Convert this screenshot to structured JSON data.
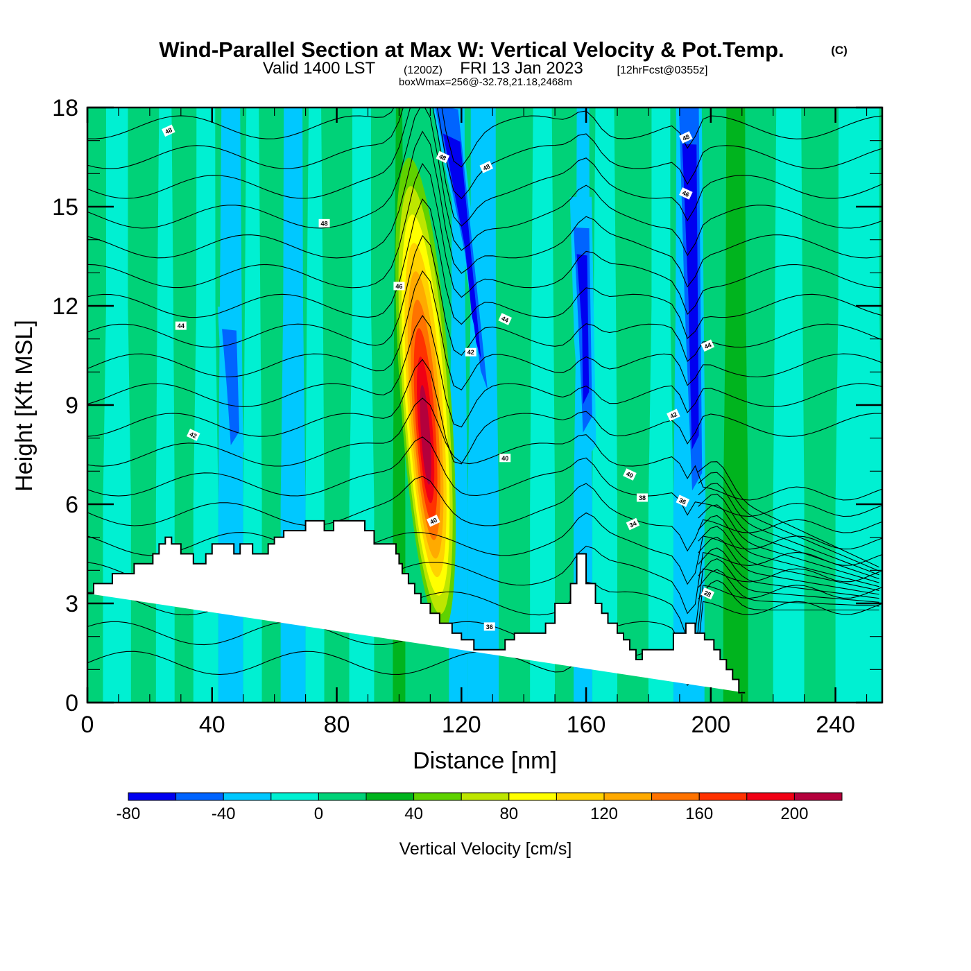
{
  "chart_data": {
    "type": "heatmap",
    "title": "Wind-Parallel Section at Max W: Vertical Velocity & Pot.Temp.",
    "title_mark": "(C)",
    "subtitle": {
      "valid": "Valid 1400 LST",
      "utc": "(1200Z)",
      "date": "FRI 13 Jan 2023",
      "forecast": "[12hrFcst@0355z]"
    },
    "box_wmax": "boxWmax=256@-32.78,21.18,2468m",
    "xlabel": "Distance [nm]",
    "ylabel": "Height [Kft MSL]",
    "xlim": [
      0,
      255
    ],
    "ylim": [
      0,
      18
    ],
    "xticks": [
      0,
      40,
      80,
      120,
      160,
      200,
      240
    ],
    "xticks_minor_step": 10,
    "yticks": [
      0,
      3,
      6,
      9,
      12,
      15,
      18
    ],
    "yticks_minor_step": 1,
    "colorbar": {
      "title": "Vertical Velocity [cm/s]",
      "levels": [
        -80,
        -60,
        -40,
        -20,
        0,
        20,
        40,
        60,
        80,
        100,
        120,
        140,
        160,
        180,
        200,
        220
      ],
      "tick_labels": [
        -80,
        -40,
        0,
        40,
        80,
        120,
        160,
        200
      ],
      "colors": [
        "#0000f0",
        "#0064ff",
        "#00c8ff",
        "#00f0d2",
        "#00d278",
        "#00b41e",
        "#5fd200",
        "#bee600",
        "#ffff00",
        "#ffd200",
        "#ffaa00",
        "#ff7300",
        "#ff3200",
        "#f00014",
        "#b4003c"
      ]
    },
    "terrain_kft": {
      "x_nm": [
        0,
        2,
        2,
        8,
        8,
        15,
        15,
        21,
        21,
        23,
        23,
        25,
        25,
        27,
        27,
        30,
        30,
        34,
        34,
        38,
        38,
        40,
        40,
        47,
        47,
        49,
        49,
        53,
        53,
        58,
        58,
        60,
        60,
        63,
        63,
        70,
        70,
        76,
        76,
        79,
        79,
        89,
        89,
        92,
        92,
        99,
        99,
        100,
        100,
        101,
        101,
        103,
        103,
        105,
        105,
        107,
        107,
        110,
        110,
        113,
        113,
        117,
        117,
        120,
        120,
        124,
        124,
        134,
        134,
        137,
        137,
        147,
        147,
        150,
        150,
        155,
        155,
        157,
        157,
        160,
        160,
        163,
        163,
        165,
        165,
        167,
        167,
        170,
        170,
        172,
        172,
        174,
        174,
        176,
        176,
        178,
        178,
        188,
        188,
        192,
        192,
        195,
        195,
        198,
        198,
        201,
        201,
        203,
        203,
        205,
        205,
        207,
        207,
        209,
        209,
        211,
        211,
        213,
        213,
        216,
        216,
        255
      ],
      "height": [
        3.3,
        3.3,
        3.6,
        3.6,
        3.9,
        3.9,
        4.2,
        4.2,
        4.5,
        4.5,
        4.8,
        4.8,
        5.0,
        5.0,
        4.8,
        4.8,
        4.5,
        4.5,
        4.2,
        4.2,
        4.5,
        4.5,
        4.8,
        4.8,
        4.5,
        4.5,
        4.8,
        4.8,
        4.5,
        4.5,
        4.8,
        4.8,
        5.0,
        5.0,
        5.2,
        5.2,
        5.5,
        5.5,
        5.2,
        5.2,
        5.5,
        5.5,
        5.2,
        5.2,
        4.8,
        4.8,
        4.5,
        4.5,
        4.2,
        4.2,
        3.9,
        3.9,
        3.6,
        3.6,
        3.3,
        3.3,
        3.0,
        3.0,
        2.7,
        2.7,
        2.4,
        2.4,
        2.1,
        2.1,
        1.9,
        1.9,
        1.6,
        1.6,
        1.9,
        1.9,
        2.1,
        2.1,
        2.4,
        2.4,
        3.0,
        3.0,
        3.6,
        3.6,
        4.5,
        4.5,
        3.6,
        3.6,
        3.0,
        3.0,
        2.7,
        2.7,
        2.4,
        2.4,
        2.1,
        2.1,
        1.9,
        1.9,
        1.6,
        1.6,
        1.3,
        1.3,
        1.6,
        1.6,
        2.1,
        2.1,
        2.4,
        2.4,
        2.1,
        2.1,
        1.9,
        1.9,
        1.6,
        1.6,
        1.3,
        1.3,
        1.0,
        1.0,
        0.7,
        0.7,
        0.3,
        0.3,
        0.3
      ]
    },
    "velocity_features": [
      {
        "name": "updraft-core",
        "x_nm": [
          104,
          107,
          110,
          112,
          114,
          113,
          111,
          109,
          106
        ],
        "z_kft": [
          4.0,
          12.5,
          15.5,
          14.0,
          9.0,
          5.5,
          4.0,
          3.5,
          3.6
        ],
        "band_values": [
          40,
          60,
          80,
          100,
          120,
          140,
          160,
          180,
          200
        ]
      },
      {
        "name": "downdraft-upper",
        "x_nm": [
          112,
          119,
          128,
          126,
          121
        ],
        "z_kft": [
          18,
          18,
          9.5,
          10.0,
          13.5
        ],
        "value": -80
      },
      {
        "name": "downdraft-160",
        "x_nm": [
          156,
          161,
          162,
          159,
          157
        ],
        "z_kft": [
          14.5,
          14.5,
          8.5,
          8.0,
          11.0
        ],
        "value": -80
      },
      {
        "name": "downdraft-193",
        "x_nm": [
          190,
          196,
          197,
          194,
          191
        ],
        "z_kft": [
          18,
          18,
          7.0,
          6.5,
          12.0
        ],
        "value": -80
      },
      {
        "name": "downdraft-45",
        "x_nm": [
          43,
          48,
          49,
          46,
          44
        ],
        "z_kft": [
          11.5,
          11.5,
          8.0,
          7.5,
          9.5
        ],
        "value": -60
      }
    ],
    "theta_contours": {
      "unit": "potential temperature (°F scale label)",
      "labels": [
        {
          "text": "48",
          "x_nm": 26,
          "z_kft": 17.3
        },
        {
          "text": "48",
          "x_nm": 76,
          "z_kft": 14.5
        },
        {
          "text": "48",
          "x_nm": 114,
          "z_kft": 16.5
        },
        {
          "text": "48",
          "x_nm": 128,
          "z_kft": 16.2
        },
        {
          "text": "46",
          "x_nm": 100,
          "z_kft": 12.6
        },
        {
          "text": "46",
          "x_nm": 192,
          "z_kft": 15.4
        },
        {
          "text": "48",
          "x_nm": 192,
          "z_kft": 17.1
        },
        {
          "text": "44",
          "x_nm": 30,
          "z_kft": 11.4
        },
        {
          "text": "44",
          "x_nm": 134,
          "z_kft": 11.6
        },
        {
          "text": "44",
          "x_nm": 199,
          "z_kft": 10.8
        },
        {
          "text": "42",
          "x_nm": 123,
          "z_kft": 10.6
        },
        {
          "text": "42",
          "x_nm": 34,
          "z_kft": 8.1
        },
        {
          "text": "42",
          "x_nm": 188,
          "z_kft": 8.7
        },
        {
          "text": "40",
          "x_nm": 134,
          "z_kft": 7.4
        },
        {
          "text": "40",
          "x_nm": 174,
          "z_kft": 6.9
        },
        {
          "text": "40",
          "x_nm": 111,
          "z_kft": 5.5
        },
        {
          "text": "38",
          "x_nm": 178,
          "z_kft": 6.2
        },
        {
          "text": "36",
          "x_nm": 191,
          "z_kft": 6.1
        },
        {
          "text": "34",
          "x_nm": 175,
          "z_kft": 5.4
        },
        {
          "text": "36",
          "x_nm": 129,
          "z_kft": 2.3
        },
        {
          "text": "28",
          "x_nm": 199,
          "z_kft": 3.3
        }
      ]
    }
  }
}
